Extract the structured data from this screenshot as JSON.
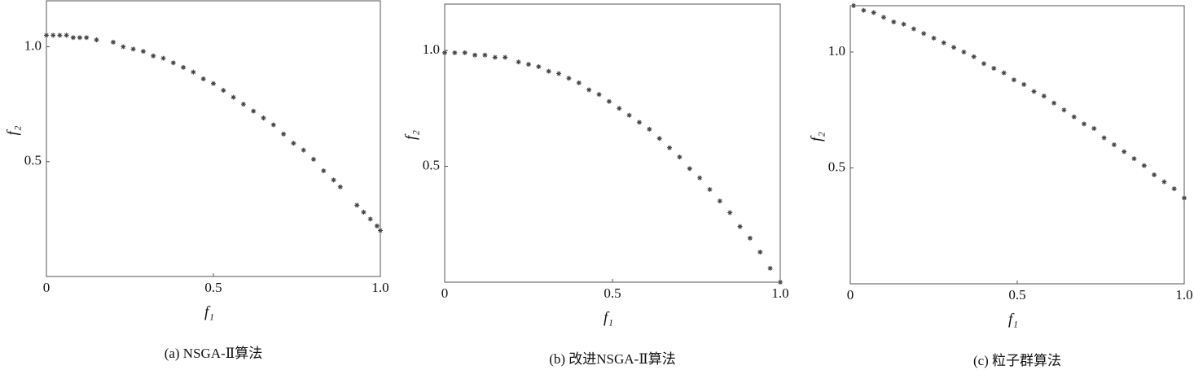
{
  "chart_data": [
    {
      "type": "scatter",
      "title": "(a) NSGA-Ⅱ算法",
      "x_label": "f₁",
      "y_label": "f₂",
      "color": "#444444",
      "xlim": [
        0,
        1
      ],
      "ylim": [
        0,
        1.2
      ],
      "xticks": [
        0,
        0.5,
        {
          "value": 1,
          "label": "1.0"
        }
      ],
      "yticks": [
        0.5,
        {
          "value": 1,
          "label": "1.0"
        }
      ],
      "x": [
        0,
        0.02,
        0.04,
        0.06,
        0.08,
        0.1,
        0.12,
        0.15,
        0.2,
        0.23,
        0.26,
        0.29,
        0.32,
        0.35,
        0.38,
        0.41,
        0.44,
        0.47,
        0.5,
        0.53,
        0.56,
        0.59,
        0.62,
        0.65,
        0.68,
        0.71,
        0.74,
        0.77,
        0.8,
        0.83,
        0.86,
        0.88,
        0.93,
        0.95,
        0.97,
        0.99,
        1.0
      ],
      "values": [
        1.05,
        1.05,
        1.05,
        1.05,
        1.04,
        1.04,
        1.04,
        1.03,
        1.02,
        1.0,
        0.99,
        0.98,
        0.96,
        0.95,
        0.93,
        0.91,
        0.89,
        0.86,
        0.84,
        0.81,
        0.78,
        0.75,
        0.72,
        0.69,
        0.66,
        0.62,
        0.58,
        0.55,
        0.51,
        0.46,
        0.42,
        0.39,
        0.31,
        0.28,
        0.25,
        0.22,
        0.2
      ]
    },
    {
      "type": "scatter",
      "title": "(b) 改进NSGA-Ⅱ算法",
      "x_label": "f₁",
      "y_label": "f₂",
      "color": "#444444",
      "xlim": [
        0,
        1
      ],
      "ylim": [
        0,
        1.2
      ],
      "xticks": [
        0,
        0.5,
        {
          "value": 1,
          "label": "1.0"
        }
      ],
      "yticks": [
        0.5,
        {
          "value": 1,
          "label": "1.0"
        }
      ],
      "x": [
        0,
        0.03,
        0.06,
        0.09,
        0.12,
        0.15,
        0.18,
        0.22,
        0.25,
        0.28,
        0.31,
        0.34,
        0.37,
        0.4,
        0.43,
        0.46,
        0.49,
        0.52,
        0.55,
        0.58,
        0.61,
        0.64,
        0.67,
        0.7,
        0.73,
        0.76,
        0.79,
        0.82,
        0.85,
        0.88,
        0.91,
        0.94,
        0.97,
        1.0
      ],
      "values": [
        0.99,
        0.99,
        0.99,
        0.98,
        0.98,
        0.97,
        0.97,
        0.95,
        0.94,
        0.93,
        0.91,
        0.9,
        0.88,
        0.86,
        0.83,
        0.81,
        0.78,
        0.75,
        0.72,
        0.69,
        0.66,
        0.62,
        0.58,
        0.54,
        0.49,
        0.45,
        0.4,
        0.35,
        0.3,
        0.24,
        0.19,
        0.13,
        0.06,
        0
      ]
    },
    {
      "type": "scatter",
      "title": "(c) 粒子群算法",
      "x_label": "f₁",
      "y_label": "f₂",
      "color": "#444444",
      "xlim": [
        0,
        1
      ],
      "ylim": [
        0,
        1.2
      ],
      "xticks": [
        0,
        0.5,
        {
          "value": 1,
          "label": "1.0"
        }
      ],
      "yticks": [
        0.5,
        {
          "value": 1,
          "label": "1.0"
        }
      ],
      "x": [
        0.01,
        0.04,
        0.07,
        0.1,
        0.13,
        0.16,
        0.19,
        0.22,
        0.25,
        0.28,
        0.31,
        0.34,
        0.37,
        0.4,
        0.43,
        0.46,
        0.49,
        0.52,
        0.55,
        0.58,
        0.61,
        0.64,
        0.67,
        0.7,
        0.73,
        0.76,
        0.79,
        0.82,
        0.85,
        0.88,
        0.91,
        0.94,
        0.97,
        1.0
      ],
      "values": [
        1.2,
        1.18,
        1.17,
        1.15,
        1.13,
        1.12,
        1.1,
        1.08,
        1.06,
        1.04,
        1.02,
        1.0,
        0.98,
        0.95,
        0.93,
        0.91,
        0.88,
        0.86,
        0.83,
        0.81,
        0.78,
        0.75,
        0.72,
        0.69,
        0.67,
        0.63,
        0.6,
        0.57,
        0.54,
        0.51,
        0.47,
        0.44,
        0.41,
        0.37
      ]
    }
  ]
}
